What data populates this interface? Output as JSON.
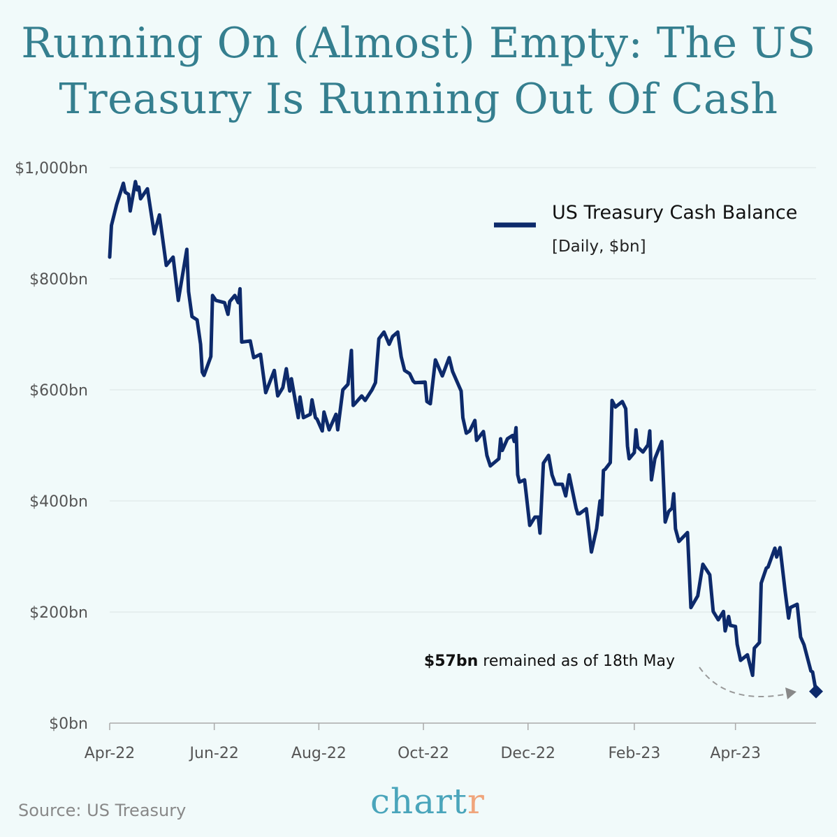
{
  "title": "Running On (Almost) Empty: The US Treasury Is Running Out Of Cash",
  "source": "Source: US Treasury",
  "logo": {
    "text_main": "chart",
    "text_accent": "r"
  },
  "colors": {
    "background": "#f1fafa",
    "title": "#357f8f",
    "line": "#0d2a6b",
    "logo": "#4aa5bb",
    "logo_accent": "#f0a57c",
    "annotation_arrow": "#999999"
  },
  "legend": {
    "label": "US Treasury Cash Balance",
    "sublabel": "[Daily, $bn]",
    "placement": "top-right"
  },
  "annotation": {
    "bold": "$57bn",
    "text": " remained as of 18th May"
  },
  "chart_data": {
    "type": "line",
    "title": "",
    "xlabel": "",
    "ylabel": "",
    "xlim": [
      "2022-04-01",
      "2023-05-18"
    ],
    "ylim": [
      0,
      1000
    ],
    "grid": true,
    "y_ticks": [
      {
        "value": 0,
        "label": "$0bn"
      },
      {
        "value": 200,
        "label": "$200bn"
      },
      {
        "value": 400,
        "label": "$400bn"
      },
      {
        "value": 600,
        "label": "$600bn"
      },
      {
        "value": 800,
        "label": "$800bn"
      },
      {
        "value": 1000,
        "label": "$1,000bn"
      }
    ],
    "x_ticks": [
      {
        "date": "2022-04-01",
        "label": "Apr-22"
      },
      {
        "date": "2022-06-01",
        "label": "Jun-22"
      },
      {
        "date": "2022-08-01",
        "label": "Aug-22"
      },
      {
        "date": "2022-10-01",
        "label": "Oct-22"
      },
      {
        "date": "2022-12-01",
        "label": "Dec-22"
      },
      {
        "date": "2023-02-01",
        "label": "Feb-23"
      },
      {
        "date": "2023-04-01",
        "label": "Apr-23"
      }
    ],
    "series": [
      {
        "name": "US Treasury Cash Balance",
        "points": [
          [
            "2022-04-01",
            839
          ],
          [
            "2022-04-02",
            896
          ],
          [
            "2022-04-05",
            933
          ],
          [
            "2022-04-09",
            972
          ],
          [
            "2022-04-10",
            956
          ],
          [
            "2022-04-12",
            952
          ],
          [
            "2022-04-13",
            922
          ],
          [
            "2022-04-16",
            975
          ],
          [
            "2022-04-17",
            960
          ],
          [
            "2022-04-18",
            965
          ],
          [
            "2022-04-19",
            944
          ],
          [
            "2022-04-23",
            962
          ],
          [
            "2022-04-27",
            881
          ],
          [
            "2022-04-30",
            915
          ],
          [
            "2022-05-04",
            824
          ],
          [
            "2022-05-08",
            839
          ],
          [
            "2022-05-11",
            761
          ],
          [
            "2022-05-16",
            853
          ],
          [
            "2022-05-17",
            777
          ],
          [
            "2022-05-19",
            732
          ],
          [
            "2022-05-22",
            726
          ],
          [
            "2022-05-24",
            682
          ],
          [
            "2022-05-25",
            632
          ],
          [
            "2022-05-26",
            626
          ],
          [
            "2022-05-30",
            660
          ],
          [
            "2022-05-31",
            770
          ],
          [
            "2022-06-02",
            761
          ],
          [
            "2022-06-07",
            757
          ],
          [
            "2022-06-09",
            736
          ],
          [
            "2022-06-10",
            759
          ],
          [
            "2022-06-13",
            770
          ],
          [
            "2022-06-15",
            757
          ],
          [
            "2022-06-16",
            782
          ],
          [
            "2022-06-17",
            686
          ],
          [
            "2022-06-22",
            688
          ],
          [
            "2022-06-24",
            658
          ],
          [
            "2022-06-28",
            664
          ],
          [
            "2022-07-01",
            595
          ],
          [
            "2022-07-06",
            635
          ],
          [
            "2022-07-08",
            589
          ],
          [
            "2022-07-11",
            604
          ],
          [
            "2022-07-13",
            638
          ],
          [
            "2022-07-15",
            598
          ],
          [
            "2022-07-16",
            620
          ],
          [
            "2022-07-20",
            550
          ],
          [
            "2022-07-21",
            587
          ],
          [
            "2022-07-23",
            550
          ],
          [
            "2022-07-27",
            556
          ],
          [
            "2022-07-28",
            582
          ],
          [
            "2022-07-30",
            550
          ],
          [
            "2022-07-31",
            547
          ],
          [
            "2022-08-03",
            526
          ],
          [
            "2022-08-04",
            560
          ],
          [
            "2022-08-07",
            528
          ],
          [
            "2022-08-11",
            556
          ],
          [
            "2022-08-12",
            528
          ],
          [
            "2022-08-15",
            600
          ],
          [
            "2022-08-18",
            610
          ],
          [
            "2022-08-20",
            671
          ],
          [
            "2022-08-21",
            572
          ],
          [
            "2022-08-22",
            575
          ],
          [
            "2022-08-26",
            589
          ],
          [
            "2022-08-28",
            581
          ],
          [
            "2022-09-01",
            600
          ],
          [
            "2022-09-03",
            613
          ],
          [
            "2022-09-05",
            692
          ],
          [
            "2022-09-08",
            704
          ],
          [
            "2022-09-11",
            682
          ],
          [
            "2022-09-13",
            696
          ],
          [
            "2022-09-16",
            704
          ],
          [
            "2022-09-18",
            660
          ],
          [
            "2022-09-20",
            635
          ],
          [
            "2022-09-23",
            629
          ],
          [
            "2022-09-25",
            616
          ],
          [
            "2022-09-26",
            613
          ],
          [
            "2022-10-02",
            614
          ],
          [
            "2022-10-03",
            579
          ],
          [
            "2022-10-05",
            575
          ],
          [
            "2022-10-08",
            654
          ],
          [
            "2022-10-12",
            625
          ],
          [
            "2022-10-16",
            658
          ],
          [
            "2022-10-18",
            633
          ],
          [
            "2022-10-23",
            598
          ],
          [
            "2022-10-24",
            550
          ],
          [
            "2022-10-26",
            522
          ],
          [
            "2022-10-28",
            526
          ],
          [
            "2022-10-31",
            545
          ],
          [
            "2022-11-01",
            509
          ],
          [
            "2022-11-05",
            525
          ],
          [
            "2022-11-07",
            482
          ],
          [
            "2022-11-09",
            463
          ],
          [
            "2022-11-14",
            476
          ],
          [
            "2022-11-15",
            512
          ],
          [
            "2022-11-16",
            491
          ],
          [
            "2022-11-19",
            512
          ],
          [
            "2022-11-22",
            518
          ],
          [
            "2022-11-23",
            507
          ],
          [
            "2022-11-24",
            532
          ],
          [
            "2022-11-25",
            447
          ],
          [
            "2022-11-26",
            434
          ],
          [
            "2022-11-29",
            438
          ],
          [
            "2022-11-30",
            411
          ],
          [
            "2022-12-02",
            356
          ],
          [
            "2022-12-05",
            371
          ],
          [
            "2022-12-07",
            371
          ],
          [
            "2022-12-08",
            342
          ],
          [
            "2022-12-10",
            468
          ],
          [
            "2022-12-13",
            482
          ],
          [
            "2022-12-15",
            447
          ],
          [
            "2022-12-17",
            430
          ],
          [
            "2022-12-21",
            430
          ],
          [
            "2022-12-23",
            409
          ],
          [
            "2022-12-25",
            447
          ],
          [
            "2022-12-29",
            387
          ],
          [
            "2022-12-30",
            377
          ],
          [
            "2022-12-31",
            377
          ],
          [
            "2023-01-04",
            386
          ],
          [
            "2023-01-07",
            308
          ],
          [
            "2023-01-10",
            350
          ],
          [
            "2023-01-12",
            400
          ],
          [
            "2023-01-13",
            375
          ],
          [
            "2023-01-14",
            455
          ],
          [
            "2023-01-15",
            457
          ],
          [
            "2023-01-18",
            469
          ],
          [
            "2023-01-19",
            581
          ],
          [
            "2023-01-21",
            569
          ],
          [
            "2023-01-25",
            579
          ],
          [
            "2023-01-27",
            566
          ],
          [
            "2023-01-28",
            499
          ],
          [
            "2023-01-29",
            476
          ],
          [
            "2023-02-01",
            487
          ],
          [
            "2023-02-02",
            528
          ],
          [
            "2023-02-03",
            497
          ],
          [
            "2023-02-06",
            488
          ],
          [
            "2023-02-09",
            501
          ],
          [
            "2023-02-10",
            526
          ],
          [
            "2023-02-11",
            438
          ],
          [
            "2023-02-13",
            476
          ],
          [
            "2023-02-17",
            507
          ],
          [
            "2023-02-19",
            362
          ],
          [
            "2023-02-21",
            381
          ],
          [
            "2023-02-23",
            387
          ],
          [
            "2023-02-24",
            413
          ],
          [
            "2023-02-25",
            350
          ],
          [
            "2023-02-27",
            327
          ],
          [
            "2023-03-04",
            343
          ],
          [
            "2023-03-06",
            208
          ],
          [
            "2023-03-10",
            229
          ],
          [
            "2023-03-13",
            286
          ],
          [
            "2023-03-17",
            267
          ],
          [
            "2023-03-19",
            201
          ],
          [
            "2023-03-22",
            186
          ],
          [
            "2023-03-25",
            201
          ],
          [
            "2023-03-26",
            166
          ],
          [
            "2023-03-28",
            192
          ],
          [
            "2023-03-29",
            176
          ],
          [
            "2023-04-01",
            174
          ],
          [
            "2023-04-02",
            142
          ],
          [
            "2023-04-04",
            113
          ],
          [
            "2023-04-08",
            123
          ],
          [
            "2023-04-11",
            86
          ],
          [
            "2023-04-12",
            135
          ],
          [
            "2023-04-15",
            145
          ],
          [
            "2023-04-16",
            252
          ],
          [
            "2023-04-19",
            279
          ],
          [
            "2023-04-20",
            281
          ],
          [
            "2023-04-24",
            315
          ],
          [
            "2023-04-25",
            299
          ],
          [
            "2023-04-27",
            316
          ],
          [
            "2023-04-30",
            237
          ],
          [
            "2023-05-02",
            189
          ],
          [
            "2023-05-03",
            208
          ],
          [
            "2023-05-07",
            214
          ],
          [
            "2023-05-09",
            155
          ],
          [
            "2023-05-11",
            141
          ],
          [
            "2023-05-15",
            94
          ],
          [
            "2023-05-16",
            92
          ],
          [
            "2023-05-18",
            57
          ]
        ]
      }
    ],
    "highlight": {
      "date": "2023-05-18",
      "value": 57,
      "marker": "diamond"
    }
  }
}
